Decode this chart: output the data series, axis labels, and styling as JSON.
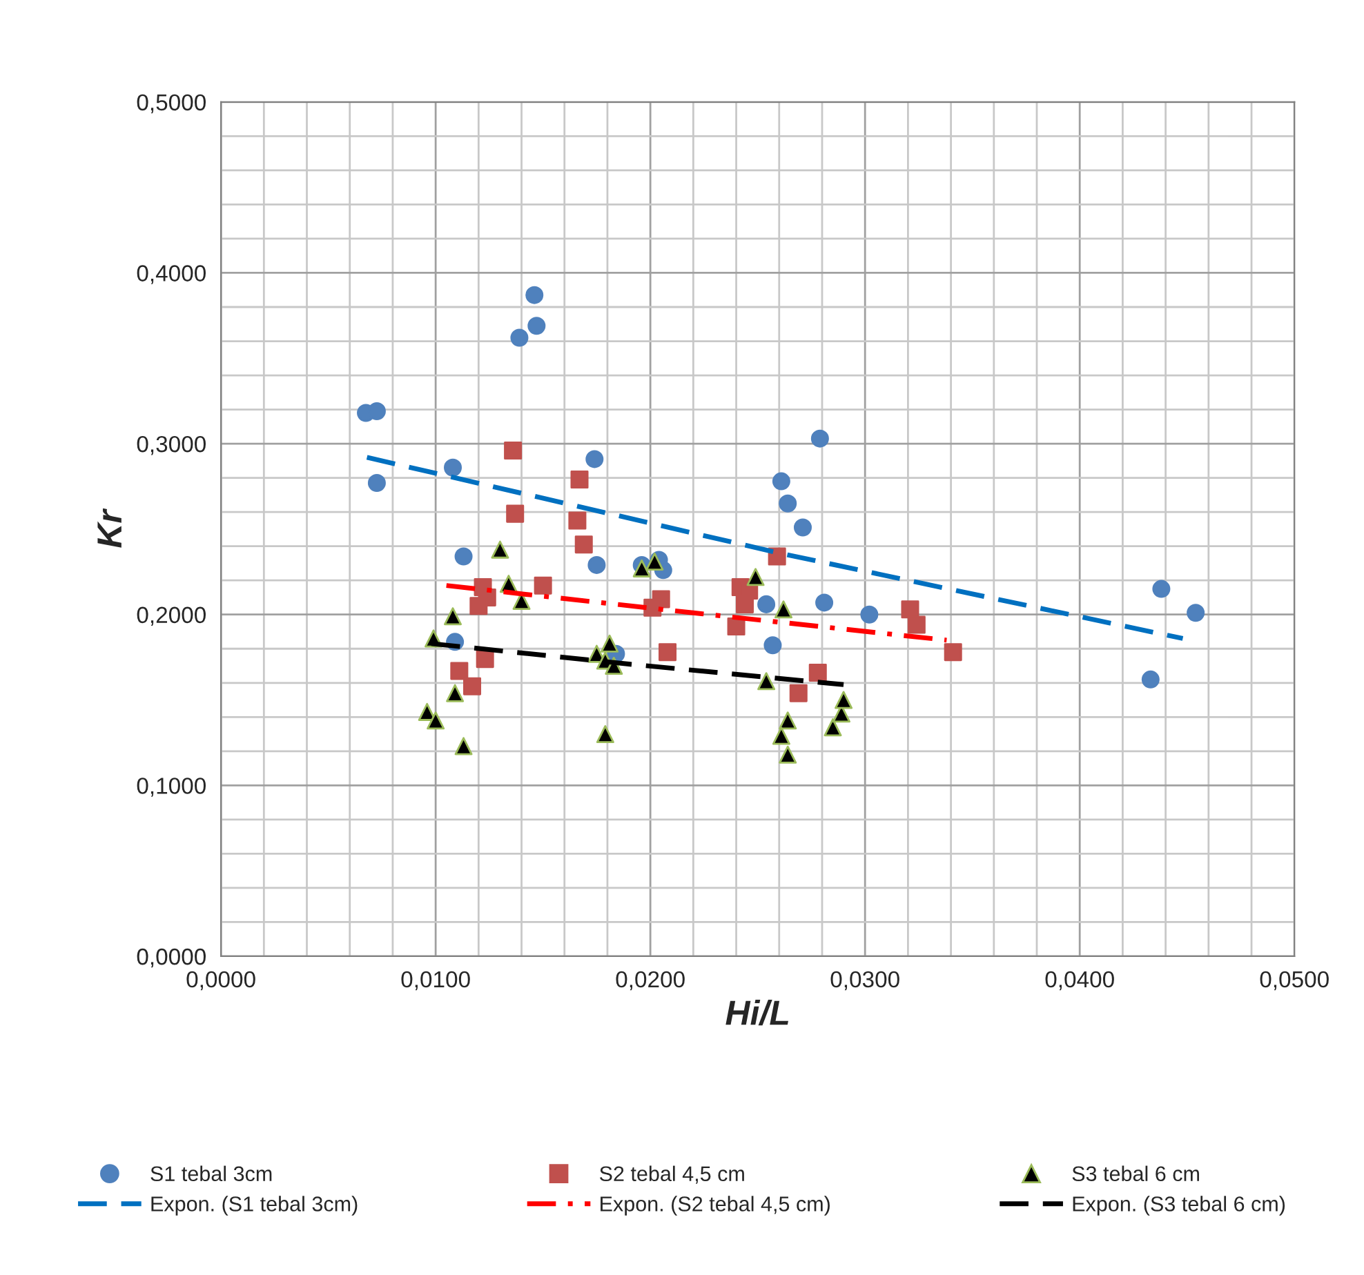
{
  "chart_data": {
    "type": "scatter",
    "xlabel": "Hi/L",
    "ylabel": "Kr",
    "xlim": [
      0,
      0.05
    ],
    "ylim": [
      0,
      0.5
    ],
    "xticks": [
      {
        "value": 0,
        "label": "0,0000"
      },
      {
        "value": 0.01,
        "label": "0,0100"
      },
      {
        "value": 0.02,
        "label": "0,0200"
      },
      {
        "value": 0.03,
        "label": "0,0300"
      },
      {
        "value": 0.04,
        "label": "0,0400"
      },
      {
        "value": 0.05,
        "label": "0,0500"
      }
    ],
    "yticks": [
      {
        "value": 0,
        "label": "0,0000"
      },
      {
        "value": 0.1,
        "label": "0,1000"
      },
      {
        "value": 0.2,
        "label": "0,2000"
      },
      {
        "value": 0.3,
        "label": "0,3000"
      },
      {
        "value": 0.4,
        "label": "0,4000"
      },
      {
        "value": 0.5,
        "label": "0,5000"
      }
    ],
    "grid": true,
    "legend": "bottom",
    "series": [
      {
        "name": "S1 tebal 3cm",
        "marker": "circle",
        "color": "#4f81bd",
        "x": [
          0.00675,
          0.00726,
          0.00726,
          0.0108,
          0.0113,
          0.0109,
          0.0139,
          0.0146,
          0.0147,
          0.0174,
          0.0175,
          0.0184,
          0.0196,
          0.0204,
          0.0206,
          0.0254,
          0.0257,
          0.0261,
          0.0264,
          0.0271,
          0.0279,
          0.0281,
          0.0302,
          0.0433,
          0.0438,
          0.0454
        ],
        "values": [
          0.318,
          0.319,
          0.277,
          0.286,
          0.234,
          0.184,
          0.362,
          0.387,
          0.369,
          0.291,
          0.229,
          0.177,
          0.229,
          0.232,
          0.226,
          0.206,
          0.182,
          0.278,
          0.265,
          0.251,
          0.303,
          0.207,
          0.2,
          0.162,
          0.215,
          0.201
        ]
      },
      {
        "name": "S2 tebal 4,5 cm",
        "marker": "square",
        "color": "#c0504d",
        "x": [
          0.0136,
          0.0167,
          0.0137,
          0.0166,
          0.0169,
          0.0122,
          0.0124,
          0.012,
          0.015,
          0.0111,
          0.0117,
          0.0123,
          0.0205,
          0.0201,
          0.0208,
          0.0242,
          0.0246,
          0.0244,
          0.024,
          0.0259,
          0.0278,
          0.0269,
          0.0321,
          0.0324,
          0.0341
        ],
        "values": [
          0.296,
          0.279,
          0.259,
          0.255,
          0.241,
          0.216,
          0.21,
          0.205,
          0.217,
          0.167,
          0.158,
          0.174,
          0.209,
          0.204,
          0.178,
          0.216,
          0.214,
          0.206,
          0.193,
          0.234,
          0.166,
          0.154,
          0.203,
          0.194,
          0.178
        ]
      },
      {
        "name": "S3 tebal 6 cm",
        "marker": "triangle",
        "color": "#000000",
        "x": [
          0.0099,
          0.0096,
          0.01,
          0.0108,
          0.0109,
          0.0113,
          0.013,
          0.0134,
          0.014,
          0.0175,
          0.0181,
          0.0179,
          0.0183,
          0.0179,
          0.0196,
          0.0202,
          0.0249,
          0.0262,
          0.0254,
          0.0264,
          0.0261,
          0.0264,
          0.0285,
          0.0289,
          0.029
        ],
        "values": [
          0.186,
          0.143,
          0.138,
          0.199,
          0.154,
          0.123,
          0.238,
          0.218,
          0.208,
          0.177,
          0.183,
          0.173,
          0.17,
          0.13,
          0.227,
          0.231,
          0.222,
          0.203,
          0.161,
          0.138,
          0.129,
          0.118,
          0.134,
          0.142,
          0.15
        ]
      },
      {
        "name": "Expon. (S1 tebal 3cm)",
        "type": "line",
        "line_style": "dashed",
        "marker": "none",
        "color": "#0070c0",
        "x": [
          0.0068,
          0.026,
          0.0448
        ],
        "values": [
          0.292,
          0.236,
          0.186
        ]
      },
      {
        "name": "Expon. (S2 tebal 4,5 cm)",
        "type": "line",
        "line_style": "dashdot",
        "marker": "none",
        "color": "#ff0000",
        "x": [
          0.0105,
          0.022,
          0.0338
        ],
        "values": [
          0.217,
          0.201,
          0.185
        ]
      },
      {
        "name": "Expon. (S3 tebal 6 cm)",
        "type": "line",
        "line_style": "dashed",
        "marker": "none",
        "color": "#000000",
        "x": [
          0.0098,
          0.019,
          0.029
        ],
        "values": [
          0.183,
          0.171,
          0.159
        ]
      }
    ]
  }
}
